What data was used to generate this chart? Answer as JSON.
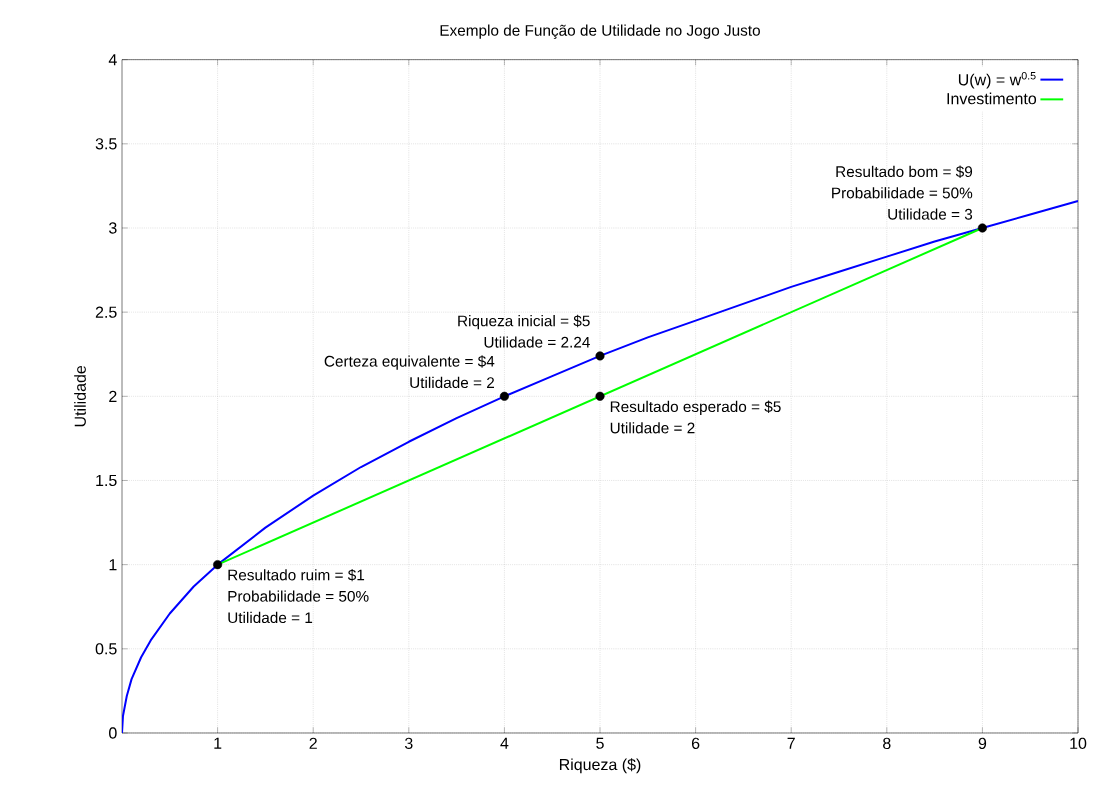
{
  "chart_data": {
    "type": "line",
    "title": "Exemplo de Função de Utilidade no Jogo Justo",
    "xlabel": "Riqueza ($)",
    "ylabel": "Utilidade",
    "xlim": [
      0,
      10
    ],
    "ylim": [
      0,
      4
    ],
    "xticks": [
      1,
      2,
      3,
      4,
      5,
      6,
      7,
      8,
      9,
      10
    ],
    "yticks": [
      0,
      0.5,
      1,
      1.5,
      2,
      2.5,
      3,
      3.5,
      4
    ],
    "grid": true,
    "legend": "top right",
    "series": [
      {
        "name": "U(w) = w$^{0.5}$",
        "color": "#0000ff",
        "x": [
          0,
          0.01,
          0.05,
          0.1,
          0.2,
          0.3,
          0.5,
          0.75,
          1,
          1.5,
          2,
          2.5,
          3,
          3.5,
          4,
          4.5,
          5,
          5.5,
          6,
          6.5,
          7,
          7.5,
          8,
          8.5,
          9,
          9.5,
          10
        ],
        "values": [
          0,
          0.1,
          0.22,
          0.32,
          0.45,
          0.55,
          0.71,
          0.87,
          1,
          1.22,
          1.41,
          1.58,
          1.73,
          1.87,
          2,
          2.12,
          2.24,
          2.35,
          2.45,
          2.55,
          2.65,
          2.74,
          2.83,
          2.92,
          3,
          3.08,
          3.16
        ]
      },
      {
        "name": "Investimento",
        "color": "#00ff00",
        "x": [
          1,
          9
        ],
        "values": [
          1,
          3
        ]
      },
      {
        "color": "#000000",
        "type": "scatter",
        "marker": "circle",
        "x": [
          1,
          4,
          5,
          5,
          9
        ],
        "values": [
          1,
          2,
          2.24,
          2,
          3
        ]
      }
    ],
    "annotations": [
      "Resultado ruim = $1",
      "Probabilidade = 50%",
      "Utilidade = 1",
      "Certeza equivalente = $4",
      "Utilidade = 2",
      "Riqueza inicial = $5",
      "Utilidade = 2.24",
      "Resultado esperado = $5",
      "Utilidade = 2",
      "Resultado bom = $9",
      "Probabilidade = 50%",
      "Utilidade = 3"
    ]
  }
}
